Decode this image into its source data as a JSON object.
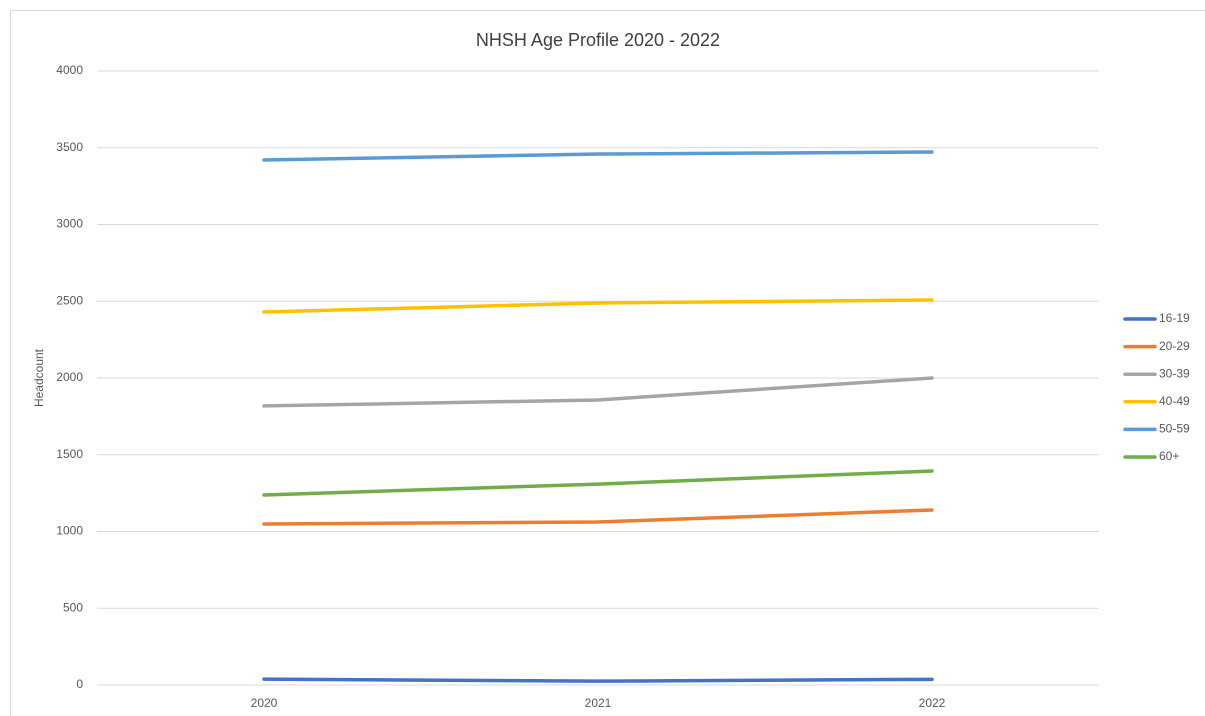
{
  "chart_data": {
    "type": "line",
    "title": "NHSH Age Profile 2020 - 2022",
    "y_label": "Headcount",
    "categories": [
      "2020",
      "2021",
      "2022"
    ],
    "series": [
      {
        "name": "16-19",
        "color": "#4472c4",
        "values": [
          38,
          25,
          37
        ]
      },
      {
        "name": "20-29",
        "color": "#ed7d31",
        "values": [
          1049,
          1062,
          1140
        ]
      },
      {
        "name": "30-39",
        "color": "#a5a5a5",
        "values": [
          1818,
          1857,
          2000
        ]
      },
      {
        "name": "40-49",
        "color": "#ffc000",
        "values": [
          2430,
          2489,
          2508
        ]
      },
      {
        "name": "50-59",
        "color": "#5b9bd5",
        "values": [
          3420,
          3459,
          3472
        ]
      },
      {
        "name": "60+",
        "color": "#70ad47",
        "values": [
          1238,
          1309,
          1394
        ]
      }
    ],
    "ylim": [
      0,
      4000
    ],
    "yticks": [
      0,
      500,
      1000,
      1500,
      2000,
      2500,
      3000,
      3500,
      4000
    ],
    "grid": true,
    "legend": "right"
  }
}
